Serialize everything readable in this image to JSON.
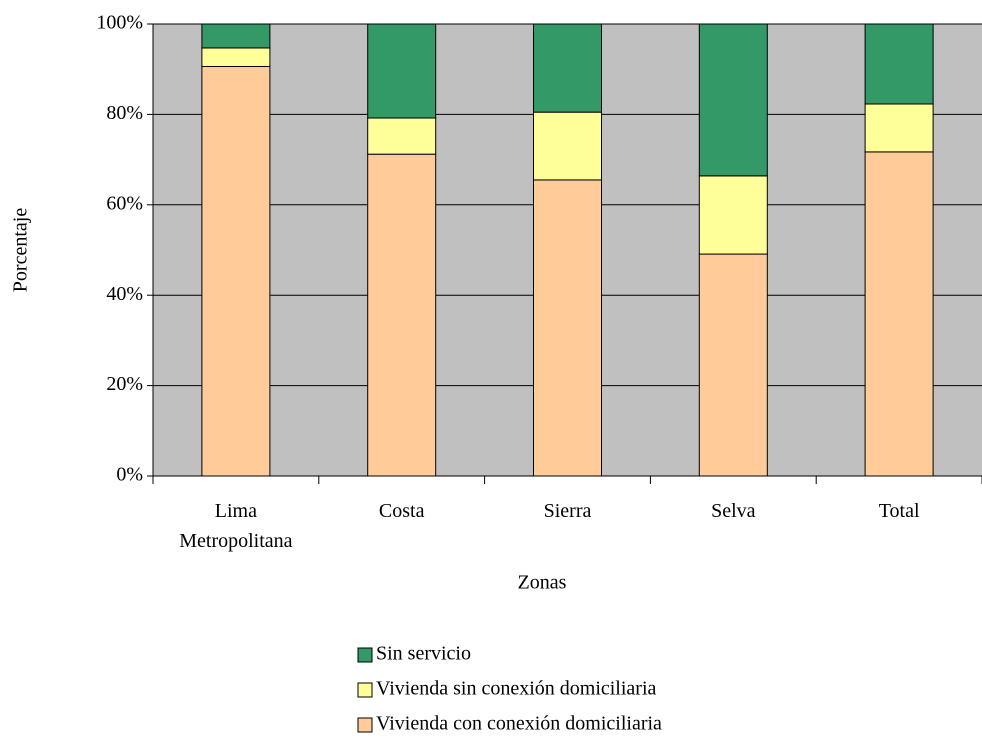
{
  "chart_data": {
    "type": "bar",
    "stacked": true,
    "xlabel": "Zonas",
    "ylabel": "Porcentaje",
    "categories": [
      "Lima Metropolitana",
      "Costa",
      "Sierra",
      "Selva",
      "Total"
    ],
    "series": [
      {
        "name": "Vivienda con conexión domiciliaria",
        "color": "#ffcc99",
        "values": [
          90.6,
          71.2,
          65.5,
          49.1,
          71.7
        ]
      },
      {
        "name": "Vivienda sin conexión domiciliaria",
        "color": "#ffff99",
        "values": [
          4.1,
          8.0,
          15.0,
          17.3,
          10.6
        ]
      },
      {
        "name": "Sin servicio",
        "color": "#339966",
        "values": [
          5.3,
          20.8,
          19.5,
          33.6,
          17.7
        ]
      }
    ],
    "ylim": [
      0,
      100
    ],
    "yticks": [
      {
        "value": 0,
        "label": "0%"
      },
      {
        "value": 20,
        "label": "20%"
      },
      {
        "value": 40,
        "label": "40%"
      },
      {
        "value": 60,
        "label": "60%"
      },
      {
        "value": 80,
        "label": "80%"
      },
      {
        "value": 100,
        "label": "100%"
      }
    ],
    "grid": true,
    "background": "#c0c0c0"
  }
}
